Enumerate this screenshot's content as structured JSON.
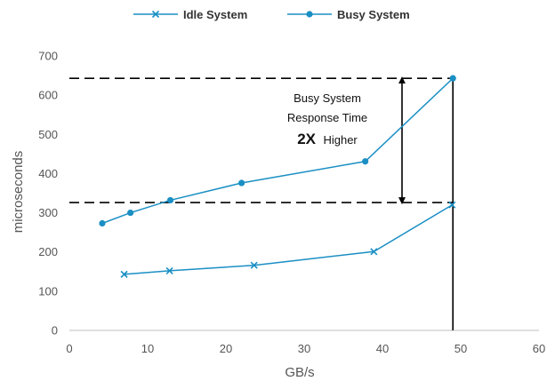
{
  "chart_data": {
    "type": "scatter",
    "xlabel": "GB/s",
    "ylabel": "microseconds",
    "xlim": [
      0,
      60
    ],
    "ylim": [
      0,
      700
    ],
    "x_ticks": [
      "0",
      "10",
      "20",
      "30",
      "40",
      "50",
      "60"
    ],
    "y_ticks": [
      "0",
      "100",
      "200",
      "300",
      "400",
      "500",
      "600",
      "700"
    ],
    "grid": false,
    "legend_position": "top",
    "series": [
      {
        "name": "Idle System",
        "color": "#1a8fc4",
        "marker": "x",
        "x": [
          7,
          12.8,
          23.6,
          38.9,
          48.9
        ],
        "y": [
          143,
          152,
          166,
          201,
          320
        ]
      },
      {
        "name": "Busy System",
        "color": "#1a8fc4",
        "marker": "circle",
        "x": [
          4.2,
          7.8,
          12.9,
          22,
          37.8,
          49
        ],
        "y": [
          273,
          300,
          332,
          376,
          431,
          643
        ]
      }
    ],
    "reference_lines": {
      "horizontal_y": [
        643,
        326
      ],
      "vertical_x": 49,
      "arrow_x": 42.5
    },
    "annotation": {
      "line1": "Busy System",
      "line2": "Response Time",
      "emphasis": "2X",
      "suffix": "Higher"
    }
  }
}
